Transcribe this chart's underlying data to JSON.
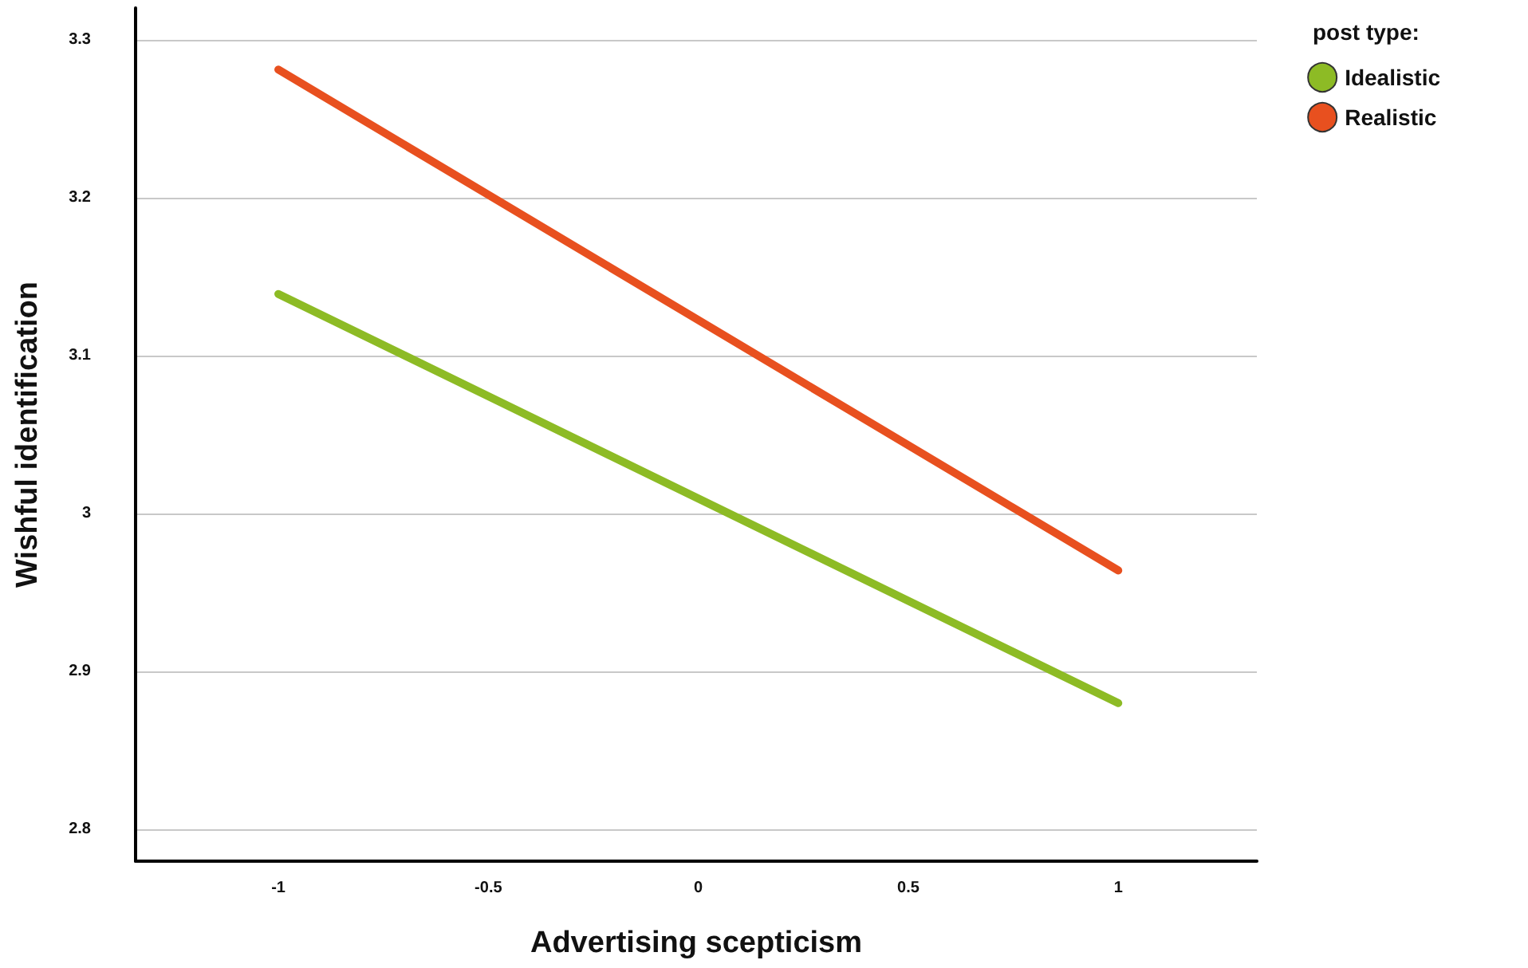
{
  "chart_data": {
    "type": "line",
    "xlabel": "Advertising scepticism",
    "ylabel": "Wishful identification",
    "legend_title": "post type:",
    "x": [
      -1,
      1
    ],
    "series": [
      {
        "name": "Idealistic",
        "color": "#8dbb25",
        "values": [
          3.139,
          2.88
        ]
      },
      {
        "name": "Realistic",
        "color": "#e8501f",
        "values": [
          3.281,
          2.964
        ]
      }
    ],
    "xlim": [
      -1.34,
      1.33
    ],
    "xticks": [
      -1,
      -0.5,
      0,
      0.5,
      1
    ],
    "ylim": [
      2.78,
      3.32
    ],
    "yticks": [
      2.8,
      2.9,
      3,
      3.1,
      3.2,
      3.3
    ],
    "grid": "y",
    "legend": "top right",
    "marker": "none",
    "line_style": "solid"
  }
}
